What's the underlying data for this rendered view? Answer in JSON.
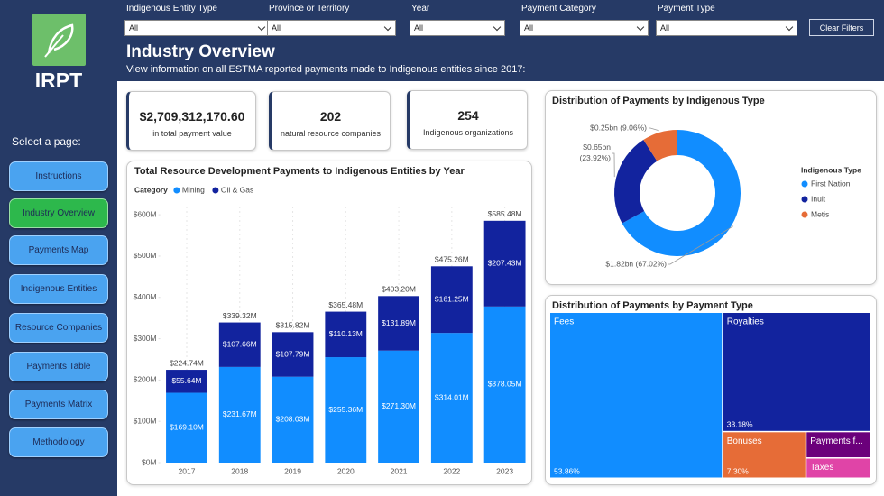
{
  "sidebar": {
    "logo": "IRPT",
    "prompt": "Select a page:",
    "pages": [
      "Instructions",
      "Industry Overview",
      "Payments Map",
      "Indigenous Entities",
      "Resource Companies",
      "Payments Table",
      "Payments Matrix",
      "Methodology"
    ]
  },
  "filters": [
    {
      "label": "Indigenous Entity Type",
      "value": "All"
    },
    {
      "label": "Province or Territory",
      "value": "All"
    },
    {
      "label": "Year",
      "value": "All"
    },
    {
      "label": "Payment Category",
      "value": "All"
    },
    {
      "label": "Payment Type",
      "value": "All"
    }
  ],
  "clear_button": "Clear Filters",
  "header": {
    "title": "Industry Overview",
    "subtitle": "View information on all ESTMA reported payments made to Indigenous entities since 2017:"
  },
  "kpis": [
    {
      "value": "$2,709,312,170.60",
      "label": "in total payment value"
    },
    {
      "value": "202",
      "label": "natural resource companies"
    },
    {
      "value": "254",
      "label": "Indigenous organizations"
    }
  ],
  "chart_data": [
    {
      "type": "stacked_bar",
      "title": "Total Resource Development Payments to Indigenous Entities by Year",
      "legend_title": "Category",
      "categories": [
        "2017",
        "2018",
        "2019",
        "2020",
        "2021",
        "2022",
        "2023"
      ],
      "series": [
        {
          "name": "Mining",
          "color": "#118dff",
          "values": [
            169.1,
            231.67,
            208.03,
            255.36,
            271.3,
            314.01,
            378.05
          ],
          "value_labels": [
            "$169.10M",
            "$231.67M",
            "$208.03M",
            "$255.36M",
            "$271.30M",
            "$314.01M",
            "$378.05M"
          ]
        },
        {
          "name": "Oil & Gas",
          "color": "#12239e",
          "values": [
            55.64,
            107.66,
            107.79,
            110.13,
            131.89,
            161.25,
            207.43
          ],
          "value_labels": [
            "$55.64M",
            "$107.66M",
            "$107.79M",
            "$110.13M",
            "$131.89M",
            "$161.25M",
            "$207.43M"
          ]
        }
      ],
      "totals": {
        "values": [
          224.74,
          339.32,
          315.82,
          365.48,
          403.2,
          475.26,
          585.48
        ],
        "value_labels": [
          "$224.74M",
          "$339.32M",
          "$315.82M",
          "$365.48M",
          "$403.20M",
          "$475.26M",
          "$585.48M"
        ]
      },
      "ylim": [
        0,
        620
      ],
      "yticks": [
        {
          "value": 0,
          "label": "$0M"
        },
        {
          "value": 100,
          "label": "$100M"
        },
        {
          "value": 200,
          "label": "$200M"
        },
        {
          "value": 300,
          "label": "$300M"
        },
        {
          "value": 400,
          "label": "$400M"
        },
        {
          "value": 500,
          "label": "$500M"
        },
        {
          "value": 600,
          "label": "$600M"
        }
      ]
    },
    {
      "type": "donut",
      "title": "Distribution of Payments by Indigenous Type",
      "legend_title": "Indigenous Type",
      "categories": [
        "First Nation",
        "Inuit",
        "Metis"
      ],
      "values": [
        67.02,
        23.92,
        9.06
      ],
      "value_labels": [
        "$1.82bn (67.02%)",
        "$0.65bn (23.92%)",
        "$0.25bn (9.06%)"
      ],
      "colors": [
        "#118dff",
        "#12239e",
        "#e66c37"
      ]
    },
    {
      "type": "treemap",
      "title": "Distribution of Payments by Payment Type",
      "categories": [
        "Fees",
        "Royalties",
        "Bonuses",
        "Payments f...",
        "Taxes"
      ],
      "values": [
        53.86,
        33.18,
        7.3,
        3.2,
        2.46
      ],
      "value_labels": [
        "53.86%",
        "33.18%",
        "7.30%",
        null,
        null
      ],
      "colors": [
        "#118dff",
        "#12239e",
        "#e66c37",
        "#6b007b",
        "#e044a7"
      ]
    }
  ]
}
